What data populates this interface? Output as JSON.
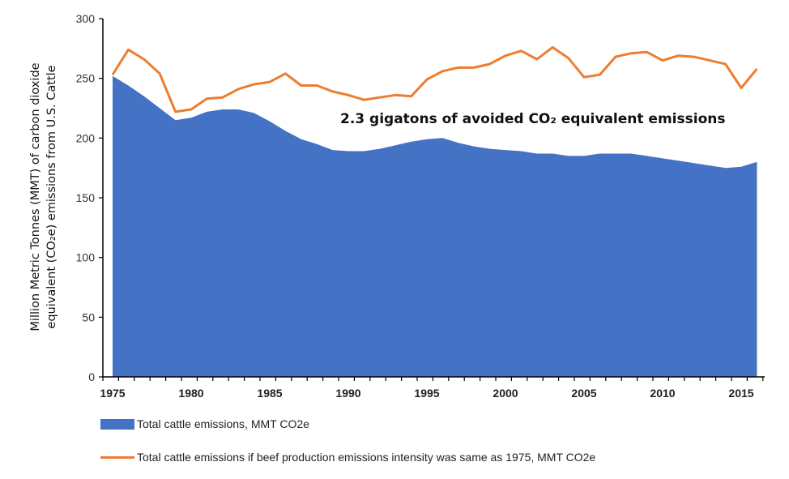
{
  "chart_data": {
    "type": "area",
    "title": "",
    "annotation": "2.3 gigatons of avoided CO₂ equivalent emissions",
    "ylabel_line1": "Million Metric Tonnes (MMT) of carbon dioxide",
    "ylabel_line2": "equivalent (CO₂e) emissions from U.S. Cattle",
    "xlabel": "",
    "ylim": [
      0,
      300
    ],
    "yticks": [
      0,
      50,
      100,
      150,
      200,
      250,
      300
    ],
    "xticks": [
      1975,
      1980,
      1985,
      1990,
      1995,
      2000,
      2005,
      2010,
      2015
    ],
    "x": [
      1975,
      1976,
      1977,
      1978,
      1979,
      1980,
      1981,
      1982,
      1983,
      1984,
      1985,
      1986,
      1987,
      1988,
      1989,
      1990,
      1991,
      1992,
      1993,
      1994,
      1995,
      1996,
      1997,
      1998,
      1999,
      2000,
      2001,
      2002,
      2003,
      2004,
      2005,
      2006,
      2007,
      2008,
      2009,
      2010,
      2011,
      2012,
      2013,
      2014,
      2015,
      2016
    ],
    "series": [
      {
        "name": "Total cattle emissions, MMT CO2e",
        "type": "area",
        "color": "#4472c4",
        "values": [
          252,
          244,
          235,
          225,
          215,
          217,
          222,
          224,
          224,
          221,
          214,
          206,
          199,
          195,
          190,
          189,
          189,
          191,
          194,
          197,
          199,
          200,
          196,
          193,
          191,
          190,
          189,
          187,
          187,
          185,
          185,
          187,
          187,
          187,
          185,
          183,
          181,
          179,
          177,
          175,
          176,
          180
        ]
      },
      {
        "name": "Total cattle emissions if beef production emissions intensity was same as 1975, MMT CO2e",
        "type": "line",
        "color": "#ed7d31",
        "values": [
          253,
          274,
          266,
          254,
          222,
          224,
          233,
          234,
          241,
          245,
          247,
          254,
          244,
          244,
          239,
          236,
          232,
          234,
          236,
          235,
          249,
          256,
          259,
          259,
          262,
          269,
          273,
          266,
          276,
          267,
          251,
          253,
          268,
          271,
          272,
          265,
          269,
          268,
          265,
          262,
          242,
          258
        ]
      }
    ],
    "legend_position": "bottom-left",
    "grid": false
  }
}
